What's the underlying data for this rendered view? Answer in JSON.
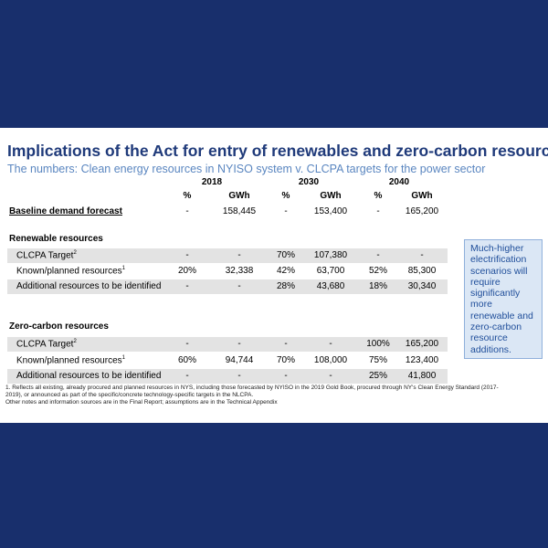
{
  "header": {
    "title": "Implications of the Act for entry of renewables and zero-carbon resources",
    "subtitle": "The numbers: Clean energy resources in NYISO system v. CLCPA targets for the power sector"
  },
  "table": {
    "years": [
      "2018",
      "2030",
      "2040"
    ],
    "units": [
      "%",
      "GWh",
      "%",
      "GWh",
      "%",
      "GWh"
    ],
    "rows": [
      {
        "label": "Baseline demand forecast",
        "cells": [
          "-",
          "158,445",
          "-",
          "153,400",
          "-",
          "165,200"
        ]
      },
      {
        "label": "Renewable resources"
      },
      {
        "label": "CLCPA Target",
        "sup": "2",
        "cells": [
          "-",
          "-",
          "70%",
          "107,380",
          "-",
          "-"
        ]
      },
      {
        "label": "Known/planned resources",
        "sup": "1",
        "cells": [
          "20%",
          "32,338",
          "42%",
          "63,700",
          "52%",
          "85,300"
        ]
      },
      {
        "label": "Additional resources to be identified",
        "cells": [
          "-",
          "-",
          "28%",
          "43,680",
          "18%",
          "30,340"
        ]
      },
      {
        "label": "Zero-carbon resources"
      },
      {
        "label": "CLCPA Target",
        "sup": "2",
        "cells": [
          "-",
          "-",
          "-",
          "-",
          "100%",
          "165,200"
        ]
      },
      {
        "label": "Known/planned resources",
        "sup": "1",
        "cells": [
          "60%",
          "94,744",
          "70%",
          "108,000",
          "75%",
          "123,400"
        ]
      },
      {
        "label": "Additional resources to be identified",
        "cells": [
          "-",
          "-",
          "-",
          "-",
          "25%",
          "41,800"
        ]
      }
    ]
  },
  "callout": "Much-higher electrification scenarios will require significantly more renewable and zero-carbon resource additions.",
  "footnotes": [
    "1. Reflects all existing, already procured and planned resources in NYS, including those forecasted by NYISO in the 2019 Gold Book, procured through NY's Clean Energy Standard (2017-2019), or announced as part of the specific/concrete technology-specific targets in the NLCPA.",
    "Other notes and information sources are in the Final Report; assumptions are in the Technical Appendix"
  ]
}
